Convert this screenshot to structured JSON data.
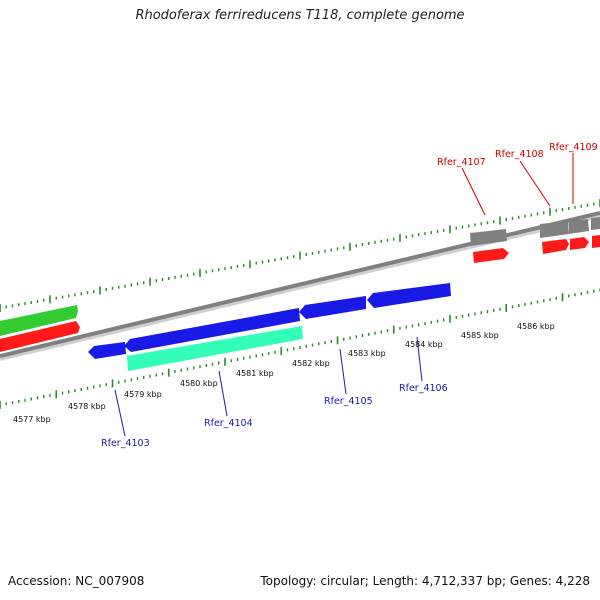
{
  "title": "Rhodoferax ferrireducens T118, complete genome",
  "footer": {
    "accession": "Accession: NC_007908",
    "topology": "Topology: circular; Length: 4,712,337 bp; Genes: 4,228"
  },
  "colors": {
    "background": "#ffffff",
    "backbone": "#808080",
    "tick": "#2a8a2a",
    "cds_forward": "#ff1a1a",
    "gene_forward": "#808080",
    "cds_reverse": "#1a1ae6",
    "rna_feature": "#33ffbb",
    "misc_feature": "#33cc33",
    "label_reverse": "#1a1aaa",
    "label_forward": "#cc0000"
  },
  "kbp_labels": [
    "4577 kbp",
    "4578 kbp",
    "4579 kbp",
    "4580 kbp",
    "4581 kbp",
    "4582 kbp",
    "4583 kbp",
    "4584 kbp",
    "4585 kbp",
    "4586 kbp"
  ],
  "gene_labels": {
    "rfer_4103": "Rfer_4103",
    "rfer_4104": "Rfer_4104",
    "rfer_4105": "Rfer_4105",
    "rfer_4106": "Rfer_4106",
    "rfer_4107": "Rfer_4107",
    "rfer_4108": "Rfer_4108",
    "rfer_4109": "Rfer_4109"
  }
}
